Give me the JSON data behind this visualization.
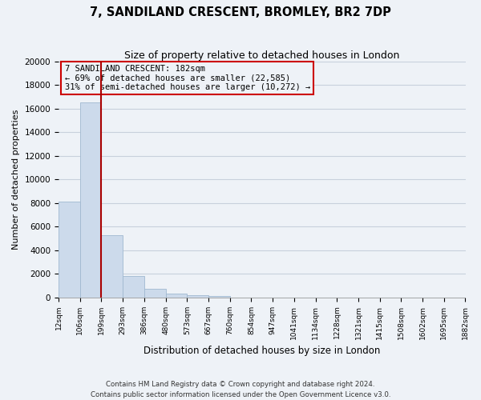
{
  "title": "7, SANDILAND CRESCENT, BROMLEY, BR2 7DP",
  "subtitle": "Size of property relative to detached houses in London",
  "xlabel": "Distribution of detached houses by size in London",
  "ylabel": "Number of detached properties",
  "bar_values": [
    8100,
    16500,
    5300,
    1850,
    750,
    300,
    200,
    150,
    0,
    0,
    0,
    0,
    0,
    0,
    0,
    0,
    0,
    0,
    0
  ],
  "bin_labels": [
    "12sqm",
    "106sqm",
    "199sqm",
    "293sqm",
    "386sqm",
    "480sqm",
    "573sqm",
    "667sqm",
    "760sqm",
    "854sqm",
    "947sqm",
    "1041sqm",
    "1134sqm",
    "1228sqm",
    "1321sqm",
    "1415sqm",
    "1508sqm",
    "1602sqm",
    "1695sqm",
    "1882sqm"
  ],
  "bar_color": "#ccdaeb",
  "bar_edge_color": "#a0b8d0",
  "vline_color": "#aa0000",
  "annotation_box_edge_color": "#cc0000",
  "annotation_title": "7 SANDILAND CRESCENT: 182sqm",
  "annotation_line1": "← 69% of detached houses are smaller (22,585)",
  "annotation_line2": "31% of semi-detached houses are larger (10,272) →",
  "ylim": [
    0,
    20000
  ],
  "yticks": [
    0,
    2000,
    4000,
    6000,
    8000,
    10000,
    12000,
    14000,
    16000,
    18000,
    20000
  ],
  "footer_line1": "Contains HM Land Registry data © Crown copyright and database right 2024.",
  "footer_line2": "Contains public sector information licensed under the Open Government Licence v3.0.",
  "background_color": "#eef2f7",
  "grid_color": "#c8d0dc"
}
